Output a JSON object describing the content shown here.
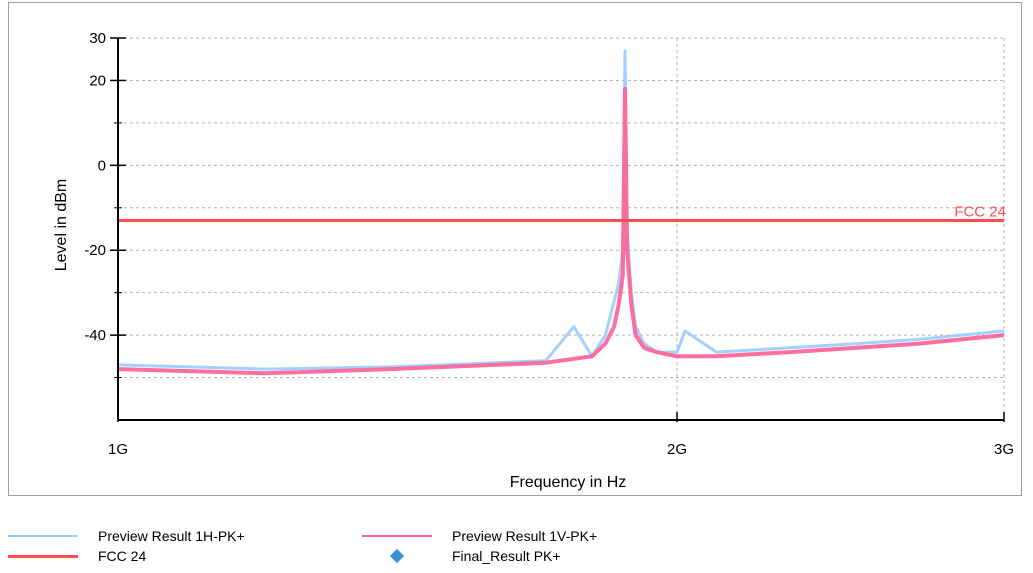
{
  "chart_data": {
    "type": "line",
    "title": "",
    "xlabel": "Frequency in Hz",
    "ylabel": "Level in dBm",
    "x_scale": "log",
    "xlim": [
      1000000000,
      3000000000
    ],
    "ylim": [
      -60,
      30
    ],
    "x_ticks": [
      {
        "value": 1000000000,
        "label": "1G"
      },
      {
        "value": 2000000000,
        "label": "2G"
      },
      {
        "value": 3000000000,
        "label": "3G"
      }
    ],
    "y_ticks": [
      {
        "value": 30,
        "label": "30"
      },
      {
        "value": 20,
        "label": "20"
      },
      {
        "value": 0,
        "label": "0"
      },
      {
        "value": -20,
        "label": "-20"
      },
      {
        "value": -40,
        "label": "-40"
      }
    ],
    "y_minor_ticks": [
      10,
      -10,
      -30,
      -50
    ],
    "grid": true,
    "legend_position": "bottom",
    "series": [
      {
        "name": "Preview Result 1H-PK+",
        "color": "#99ccff",
        "x": [
          1000000000,
          1200000000,
          1400000000,
          1600000000,
          1700000000,
          1760000000,
          1800000000,
          1830000000,
          1850000000,
          1860000000,
          1870000000,
          1875000000,
          1880000000,
          1890000000,
          1900000000,
          1920000000,
          1950000000,
          2000000000,
          2020000000,
          2100000000,
          2300000000,
          2500000000,
          2700000000,
          3000000000
        ],
        "y": [
          -47,
          -48,
          -47.5,
          -46.5,
          -46,
          -38,
          -45,
          -40,
          -32,
          -28,
          -20,
          27,
          -15,
          -30,
          -38,
          -42,
          -44,
          -44,
          -39,
          -44,
          -43,
          -42,
          -41,
          -39
        ]
      },
      {
        "name": "Preview Result 1V-PK+",
        "color": "#ff6699",
        "x": [
          1000000000,
          1200000000,
          1400000000,
          1600000000,
          1700000000,
          1800000000,
          1830000000,
          1850000000,
          1860000000,
          1870000000,
          1875000000,
          1880000000,
          1890000000,
          1900000000,
          1920000000,
          1950000000,
          2000000000,
          2100000000,
          2300000000,
          2500000000,
          2700000000,
          3000000000
        ],
        "y": [
          -48,
          -49,
          -48,
          -47,
          -46.5,
          -45,
          -42,
          -38,
          -33,
          -26,
          18,
          -20,
          -33,
          -40,
          -43,
          -44,
          -45,
          -45,
          -44,
          -43,
          -42,
          -40
        ]
      },
      {
        "name": "FCC 24",
        "color": "#ff4d4d",
        "x": [
          1000000000,
          3000000000
        ],
        "y": [
          -13,
          -13
        ]
      },
      {
        "name": "Final_Result PK+",
        "color": "#3b8fd9",
        "x": [],
        "y": []
      }
    ],
    "annotations": [
      {
        "text": "FCC 24",
        "x": 3000000000,
        "y": -13
      }
    ]
  },
  "legend": [
    {
      "label": "Preview Result 1H-PK+",
      "color": "#99ccff",
      "kind": "line"
    },
    {
      "label": "Preview Result 1V-PK+",
      "color": "#ff6699",
      "kind": "line"
    },
    {
      "label": "FCC 24",
      "color": "#ff4d4d",
      "kind": "line"
    },
    {
      "label": "Final_Result PK+",
      "color": "#3b8fd9",
      "kind": "diamond"
    }
  ]
}
